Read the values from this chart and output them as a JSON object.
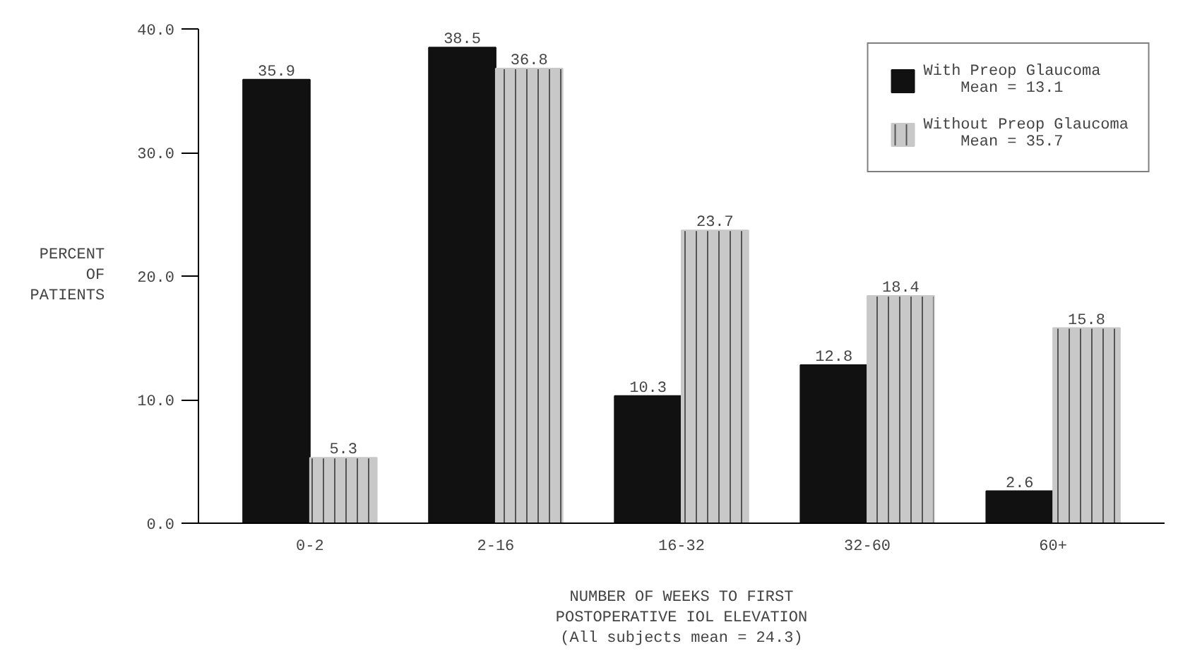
{
  "chart_data": {
    "type": "bar",
    "xlabel": "NUMBER OF WEEKS TO FIRST\nPOSTOPERATIVE IOL ELEVATION\n(All subjects mean = 24.3)",
    "ylabel": "PERCENT\nOF\nPATIENTS",
    "categories": [
      "0-2",
      "2-16",
      "16-32",
      "32-60",
      "60+"
    ],
    "series": [
      {
        "name": "With Preop Glaucoma\n    Mean = 13.1",
        "color": "#111111",
        "values": [
          35.9,
          38.5,
          10.3,
          12.8,
          2.6
        ]
      },
      {
        "name": "Without Preop Glaucoma\n    Mean = 35.7",
        "color": "#c8c8c8",
        "values": [
          5.3,
          36.8,
          23.7,
          18.4,
          15.8
        ]
      }
    ],
    "ylim": [
      0,
      40
    ],
    "yticks": [
      {
        "value": 0,
        "label": "0.0"
      },
      {
        "value": 10,
        "label": "10.0"
      },
      {
        "value": 20,
        "label": "20.0"
      },
      {
        "value": 30,
        "label": "30.0"
      },
      {
        "value": 40,
        "label": "40.0"
      }
    ],
    "data_labels": true,
    "grid": false,
    "legend": "top right"
  }
}
